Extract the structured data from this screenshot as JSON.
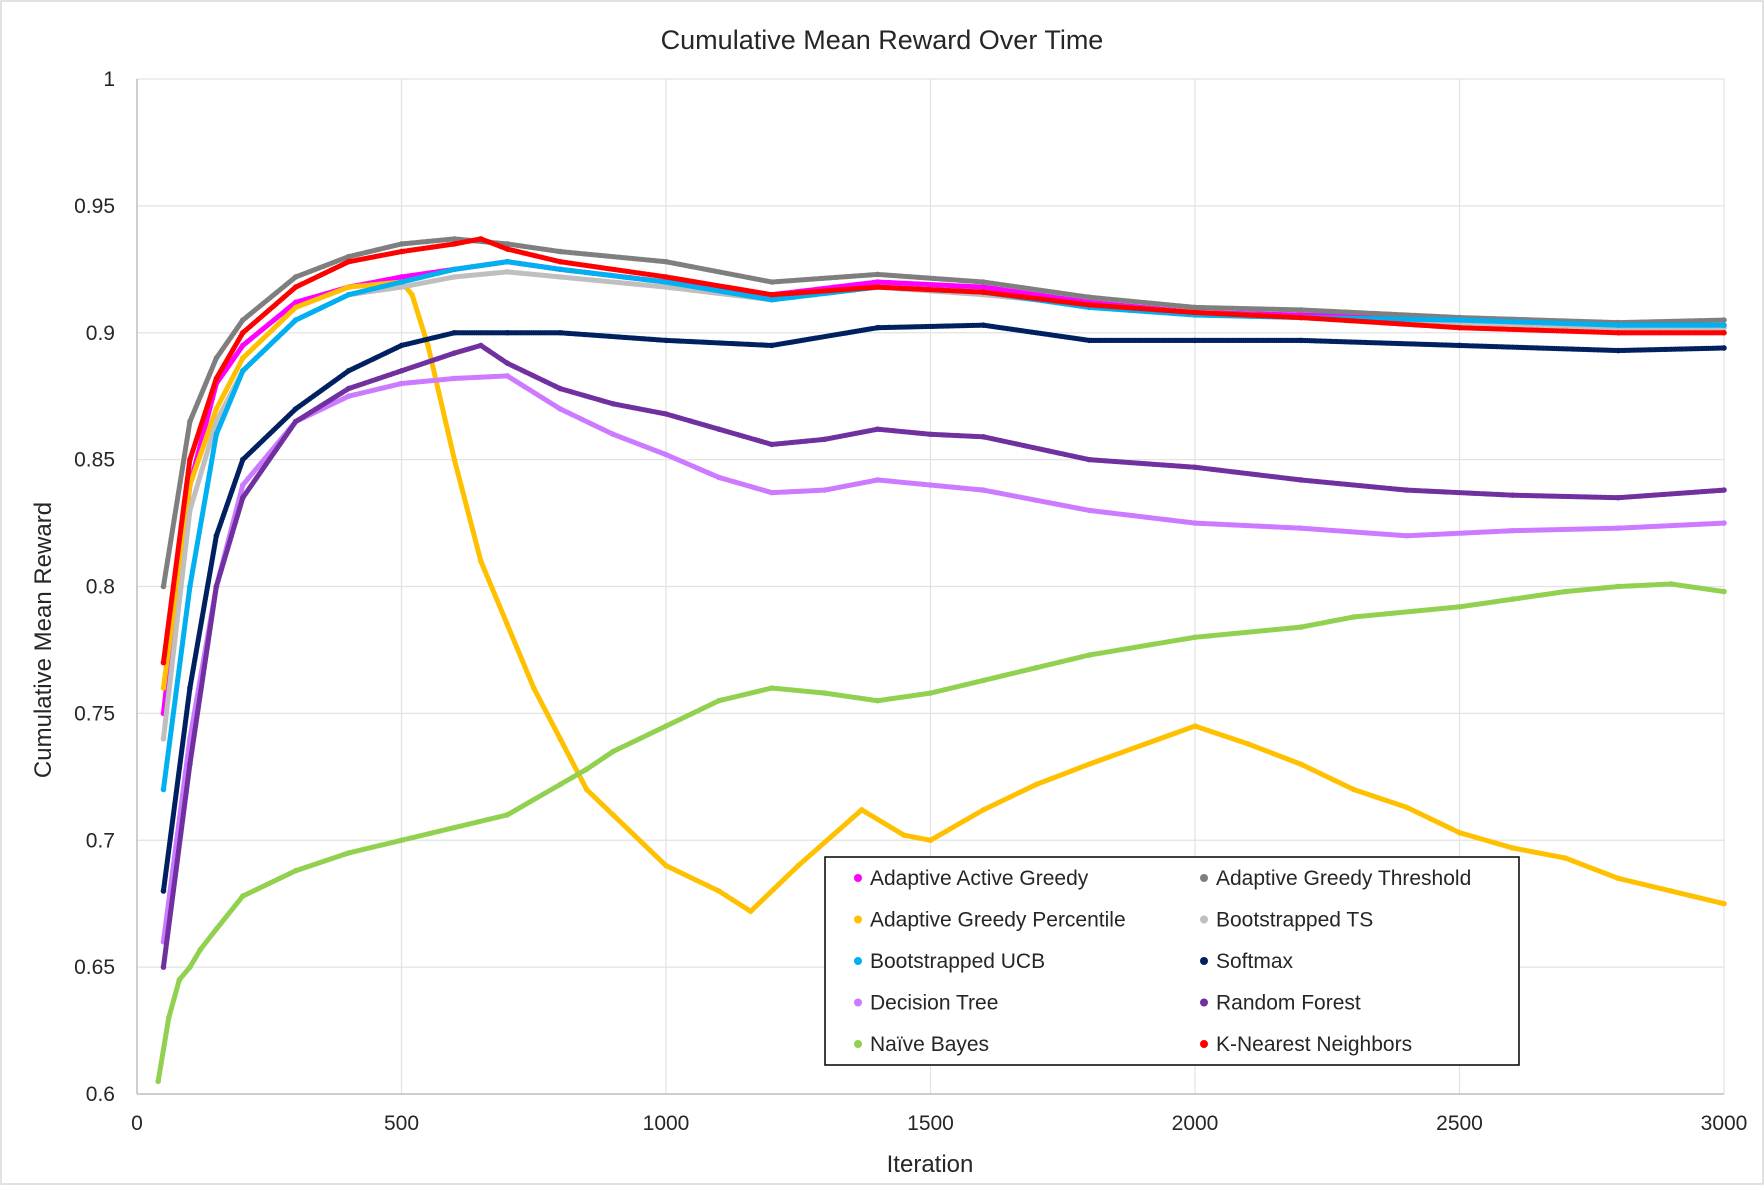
{
  "chart_data": {
    "type": "scatter",
    "title": "Cumulative Mean Reward Over Time",
    "xlabel": "Iteration",
    "ylabel": "Cumulative Mean Reward",
    "xlim": [
      0,
      3000
    ],
    "ylim": [
      0.6,
      1.0
    ],
    "xticks": [
      "0",
      "500",
      "1000",
      "1500",
      "2000",
      "2500",
      "3000"
    ],
    "yticks": [
      "0.6",
      "0.65",
      "0.7",
      "0.75",
      "0.8",
      "0.85",
      "0.9",
      "0.95",
      "1"
    ],
    "grid": true,
    "legend_position": "bottom-right",
    "series": [
      {
        "name": "Adaptive Active Greedy",
        "color": "#ff00ff",
        "x": [
          50,
          100,
          150,
          200,
          300,
          400,
          500,
          600,
          700,
          800,
          1000,
          1200,
          1400,
          1600,
          1800,
          2000,
          2200,
          2500,
          2800,
          3000
        ],
        "y": [
          0.75,
          0.84,
          0.88,
          0.895,
          0.912,
          0.918,
          0.922,
          0.925,
          0.928,
          0.925,
          0.92,
          0.915,
          0.92,
          0.918,
          0.912,
          0.908,
          0.907,
          0.905,
          0.902,
          0.902
        ]
      },
      {
        "name": "Adaptive Greedy Threshold",
        "color": "#7f7f7f",
        "x": [
          50,
          100,
          150,
          200,
          300,
          400,
          500,
          600,
          700,
          800,
          1000,
          1200,
          1400,
          1600,
          1800,
          2000,
          2200,
          2500,
          2800,
          3000
        ],
        "y": [
          0.8,
          0.865,
          0.89,
          0.905,
          0.922,
          0.93,
          0.935,
          0.937,
          0.935,
          0.932,
          0.928,
          0.92,
          0.923,
          0.92,
          0.914,
          0.91,
          0.909,
          0.906,
          0.904,
          0.905
        ]
      },
      {
        "name": "Adaptive Greedy Percentile",
        "color": "#ffc000",
        "x": [
          50,
          100,
          150,
          200,
          300,
          400,
          500,
          520,
          550,
          600,
          650,
          700,
          750,
          800,
          850,
          900,
          1000,
          1100,
          1160,
          1250,
          1370,
          1450,
          1500,
          1600,
          1700,
          1800,
          2000,
          2100,
          2200,
          2300,
          2400,
          2500,
          2600,
          2700,
          2800,
          2900,
          3000
        ],
        "y": [
          0.76,
          0.84,
          0.87,
          0.89,
          0.91,
          0.918,
          0.92,
          0.915,
          0.895,
          0.85,
          0.81,
          0.785,
          0.76,
          0.74,
          0.72,
          0.71,
          0.69,
          0.68,
          0.672,
          0.69,
          0.712,
          0.702,
          0.7,
          0.712,
          0.722,
          0.73,
          0.745,
          0.738,
          0.73,
          0.72,
          0.713,
          0.703,
          0.697,
          0.693,
          0.685,
          0.68,
          0.675
        ]
      },
      {
        "name": "Bootstrapped TS",
        "color": "#bfbfbf",
        "x": [
          50,
          100,
          150,
          200,
          300,
          400,
          500,
          600,
          700,
          800,
          1000,
          1200,
          1400,
          1600,
          1800,
          2000,
          2200,
          2500,
          2800,
          3000
        ],
        "y": [
          0.74,
          0.83,
          0.865,
          0.885,
          0.905,
          0.915,
          0.918,
          0.922,
          0.924,
          0.922,
          0.918,
          0.913,
          0.918,
          0.915,
          0.911,
          0.908,
          0.906,
          0.904,
          0.902,
          0.902
        ]
      },
      {
        "name": "Bootstrapped UCB",
        "color": "#00b0f0",
        "x": [
          50,
          100,
          150,
          200,
          300,
          400,
          500,
          600,
          700,
          800,
          1000,
          1200,
          1400,
          1600,
          1800,
          2000,
          2200,
          2500,
          2800,
          3000
        ],
        "y": [
          0.72,
          0.8,
          0.86,
          0.885,
          0.905,
          0.915,
          0.92,
          0.925,
          0.928,
          0.925,
          0.92,
          0.913,
          0.918,
          0.916,
          0.91,
          0.907,
          0.906,
          0.905,
          0.903,
          0.903
        ]
      },
      {
        "name": "Softmax",
        "color": "#002060",
        "x": [
          50,
          100,
          150,
          200,
          300,
          400,
          500,
          600,
          700,
          800,
          1000,
          1200,
          1400,
          1600,
          1800,
          2000,
          2200,
          2500,
          2800,
          3000
        ],
        "y": [
          0.68,
          0.76,
          0.82,
          0.85,
          0.87,
          0.885,
          0.895,
          0.9,
          0.9,
          0.9,
          0.897,
          0.895,
          0.902,
          0.903,
          0.897,
          0.897,
          0.897,
          0.895,
          0.893,
          0.894
        ]
      },
      {
        "name": "Decision Tree",
        "color": "#cc7aff",
        "x": [
          50,
          100,
          150,
          200,
          300,
          400,
          500,
          600,
          700,
          800,
          900,
          1000,
          1100,
          1200,
          1300,
          1400,
          1500,
          1600,
          1800,
          2000,
          2200,
          2400,
          2600,
          2800,
          3000
        ],
        "y": [
          0.66,
          0.74,
          0.8,
          0.84,
          0.865,
          0.875,
          0.88,
          0.882,
          0.883,
          0.87,
          0.86,
          0.852,
          0.843,
          0.837,
          0.838,
          0.842,
          0.84,
          0.838,
          0.83,
          0.825,
          0.823,
          0.82,
          0.822,
          0.823,
          0.825
        ]
      },
      {
        "name": "Random Forest",
        "color": "#7030a0",
        "x": [
          50,
          100,
          150,
          200,
          300,
          400,
          500,
          600,
          650,
          700,
          800,
          900,
          1000,
          1100,
          1200,
          1300,
          1400,
          1500,
          1600,
          1800,
          2000,
          2200,
          2400,
          2600,
          2800,
          3000
        ],
        "y": [
          0.65,
          0.73,
          0.8,
          0.835,
          0.865,
          0.878,
          0.885,
          0.892,
          0.895,
          0.888,
          0.878,
          0.872,
          0.868,
          0.862,
          0.856,
          0.858,
          0.862,
          0.86,
          0.859,
          0.85,
          0.847,
          0.842,
          0.838,
          0.836,
          0.835,
          0.838
        ]
      },
      {
        "name": "Naïve Bayes",
        "color": "#92d050",
        "x": [
          40,
          60,
          80,
          100,
          120,
          150,
          200,
          300,
          400,
          500,
          600,
          700,
          800,
          850,
          900,
          1000,
          1100,
          1200,
          1300,
          1400,
          1500,
          1600,
          1700,
          1800,
          2000,
          2200,
          2300,
          2500,
          2600,
          2700,
          2800,
          2900,
          3000
        ],
        "y": [
          0.605,
          0.63,
          0.645,
          0.65,
          0.657,
          0.665,
          0.678,
          0.688,
          0.695,
          0.7,
          0.705,
          0.71,
          0.722,
          0.728,
          0.735,
          0.745,
          0.755,
          0.76,
          0.758,
          0.755,
          0.758,
          0.763,
          0.768,
          0.773,
          0.78,
          0.784,
          0.788,
          0.792,
          0.795,
          0.798,
          0.8,
          0.801,
          0.798
        ]
      },
      {
        "name": "K-Nearest Neighbors",
        "color": "#ff0000",
        "x": [
          50,
          100,
          150,
          200,
          300,
          400,
          500,
          600,
          650,
          700,
          800,
          1000,
          1200,
          1400,
          1600,
          1800,
          2000,
          2200,
          2500,
          2800,
          3000
        ],
        "y": [
          0.77,
          0.85,
          0.882,
          0.9,
          0.918,
          0.928,
          0.932,
          0.935,
          0.937,
          0.933,
          0.928,
          0.922,
          0.915,
          0.918,
          0.916,
          0.911,
          0.908,
          0.906,
          0.902,
          0.9,
          0.9
        ]
      }
    ]
  }
}
